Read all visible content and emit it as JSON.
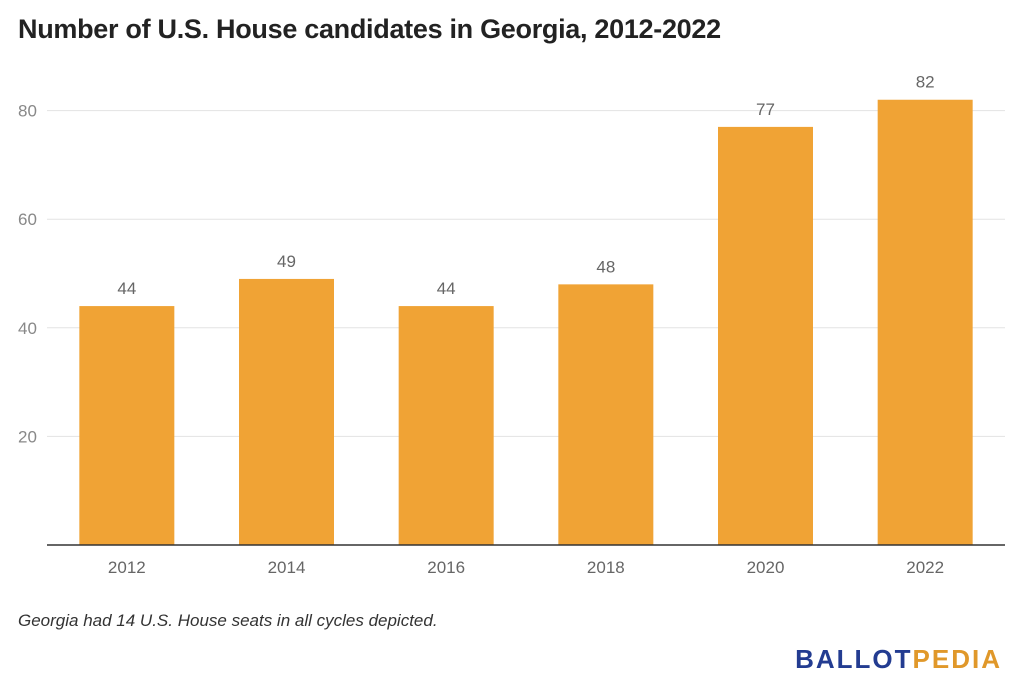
{
  "header": {
    "title": "Number of U.S. House candidates in Georgia, 2012-2022"
  },
  "chart_data": {
    "type": "bar",
    "title": "Number of U.S. House candidates in Georgia, 2012-2022",
    "categories": [
      "2012",
      "2014",
      "2016",
      "2018",
      "2020",
      "2022"
    ],
    "values": [
      44,
      49,
      44,
      48,
      77,
      82
    ],
    "data_labels": [
      "44",
      "49",
      "44",
      "48",
      "77",
      "82"
    ],
    "y_ticks": [
      20,
      40,
      60,
      80
    ],
    "ylim": [
      0,
      88
    ],
    "grid": true,
    "bar_color": "#F0A335",
    "xlabel": "",
    "ylabel": ""
  },
  "footer": {
    "note": "Georgia had 14 U.S. House seats in all cycles depicted.",
    "logo_part1": "BALLOT",
    "logo_part2": "PEDIA",
    "logo_color1": "#233C91",
    "logo_color2": "#E0982A"
  }
}
